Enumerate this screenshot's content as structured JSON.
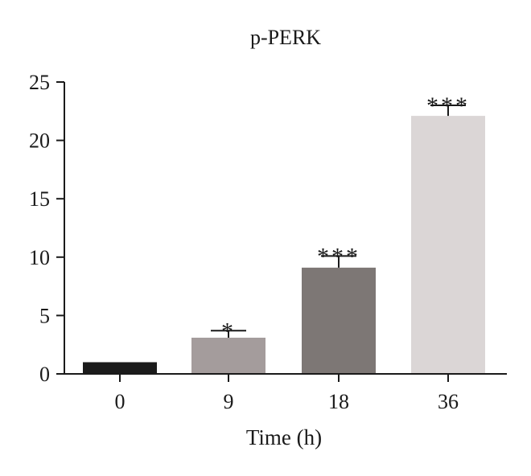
{
  "chart_data": {
    "type": "bar",
    "title": "p-PERK",
    "xlabel": "Time (h)",
    "ylabel": "",
    "categories": [
      "0",
      "9",
      "18",
      "36"
    ],
    "values": [
      1.0,
      3.1,
      9.1,
      22.1
    ],
    "error": [
      0.0,
      0.6,
      1.0,
      0.9
    ],
    "significance": [
      "",
      "*",
      "***",
      "***"
    ],
    "ylim": [
      0,
      25
    ],
    "yticks": [
      0,
      5,
      10,
      15,
      20,
      25
    ],
    "bar_colors": [
      "#1b1b1b",
      "#a49c9c",
      "#7d7775",
      "#dbd6d6"
    ],
    "grid": false,
    "legend": "none"
  }
}
